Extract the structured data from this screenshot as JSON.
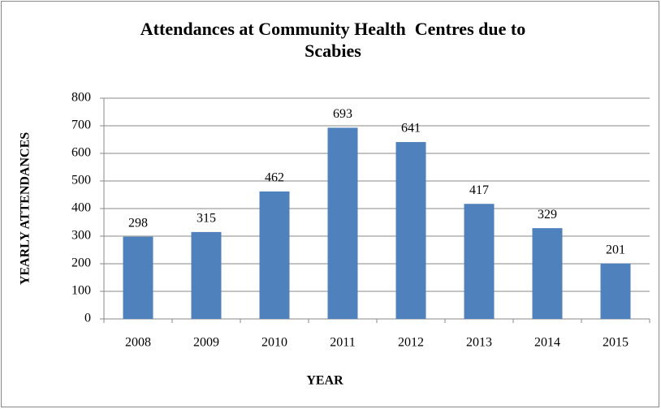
{
  "chart_data": {
    "type": "bar",
    "title": "Attendances at Community Health  Centres due to Scabies",
    "x_label": "YEAR",
    "y_label": "YEARLY ATTENDANCES",
    "categories": [
      "2008",
      "2009",
      "2010",
      "2011",
      "2012",
      "2013",
      "2014",
      "2015"
    ],
    "values": [
      298,
      315,
      462,
      693,
      641,
      417,
      329,
      201
    ],
    "color": "#4f81bd",
    "ylim": [
      0,
      800
    ],
    "yticks": [
      0,
      100,
      200,
      300,
      400,
      500,
      600,
      700,
      800
    ],
    "grid": true,
    "data_labels": true
  }
}
